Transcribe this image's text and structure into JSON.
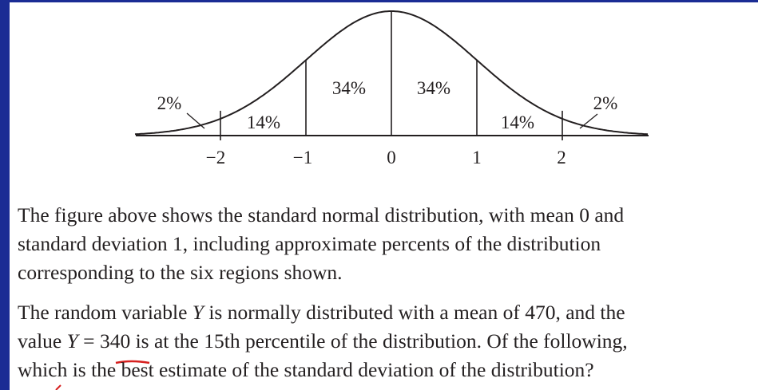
{
  "figure": {
    "region_labels": [
      "2%",
      "14%",
      "34%",
      "34%",
      "14%",
      "2%"
    ],
    "axis_labels": [
      "−2",
      "−1",
      "0",
      "1",
      "2"
    ]
  },
  "paragraphs": [
    {
      "lines": [
        "The figure above shows the standard normal distribution, with mean 0 and",
        "standard deviation 1, including approximate percents of the distribution",
        "corresponding to the six regions shown."
      ]
    },
    {
      "lines": [
        [
          "The random variable ",
          "Y",
          " is normally distributed with a mean of 470, and the"
        ],
        [
          "value ",
          "Y",
          " = ",
          "340",
          " is at the 15th percentile of the distribution. Of the following,"
        ],
        [
          "which is the best estimate of the standard deviation of the distribution?"
        ]
      ]
    }
  ]
}
